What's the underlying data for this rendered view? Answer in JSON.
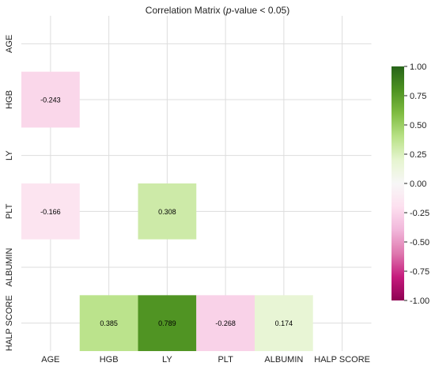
{
  "chart_data": {
    "type": "heatmap",
    "title_prefix": "Correlation Matrix (",
    "title_italic": "p",
    "title_suffix": "-value < 0.05)",
    "x_categories": [
      "AGE",
      "HGB",
      "LY",
      "PLT",
      "ALBUMIN",
      "HALP SCORE"
    ],
    "y_categories": [
      "AGE",
      "HGB",
      "LY",
      "PLT",
      "ALBUMIN",
      "HALP SCORE"
    ],
    "cells": [
      {
        "row": "HGB",
        "col": "AGE",
        "value": -0.243,
        "label": "-0.243"
      },
      {
        "row": "PLT",
        "col": "AGE",
        "value": -0.166,
        "label": "-0.166"
      },
      {
        "row": "PLT",
        "col": "LY",
        "value": 0.308,
        "label": "0.308"
      },
      {
        "row": "HALP SCORE",
        "col": "HGB",
        "value": 0.385,
        "label": "0.385"
      },
      {
        "row": "HALP SCORE",
        "col": "LY",
        "value": 0.789,
        "label": "0.789"
      },
      {
        "row": "HALP SCORE",
        "col": "PLT",
        "value": -0.268,
        "label": "-0.268"
      },
      {
        "row": "HALP SCORE",
        "col": "ALBUMIN",
        "value": 0.174,
        "label": "0.174"
      }
    ],
    "colorbar": {
      "colormap": "PiYG",
      "vmin": -1.0,
      "vmax": 1.0,
      "ticks": [
        "-1.00",
        "-0.75",
        "-0.50",
        "-0.25",
        "0.00",
        "0.25",
        "0.50",
        "0.75",
        "1.00"
      ]
    },
    "grid": true,
    "colors": {
      "grid": "#dddddd",
      "text": "#222222",
      "cell_text": "#000000"
    }
  }
}
